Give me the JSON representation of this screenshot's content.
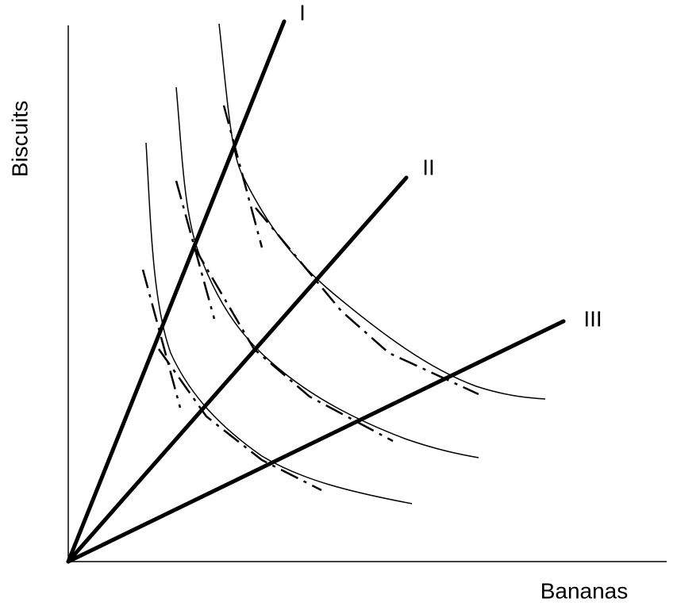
{
  "axes": {
    "y_label": "Biscuits",
    "x_label": "Bananas"
  },
  "rays": [
    {
      "label": "I"
    },
    {
      "label": "II"
    },
    {
      "label": "III"
    }
  ]
}
